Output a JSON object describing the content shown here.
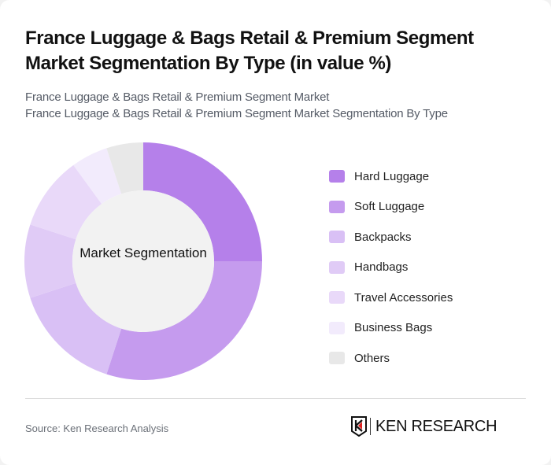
{
  "header": {
    "title": "France Luggage & Bags Retail & Premium Segment Market Segmentation By Type (in value %)",
    "subtitle_line1": "France Luggage & Bags Retail & Premium Segment Market",
    "subtitle_line2": "France Luggage & Bags Retail & Premium Segment Market Segmentation By Type"
  },
  "chart_data": {
    "type": "pie",
    "subtype": "donut",
    "title": "France Luggage & Bags Retail & Premium Segment Market Segmentation By Type (in value %)",
    "center_label": "Market Segmentation",
    "categories": [
      "Hard Luggage",
      "Soft Luggage",
      "Backpacks",
      "Handbags",
      "Travel Accessories",
      "Business Bags",
      "Others"
    ],
    "values": [
      25,
      30,
      15,
      10,
      10,
      5,
      5
    ],
    "colors": [
      "#b580ea",
      "#c59bee",
      "#d9c0f5",
      "#e0cbf6",
      "#e9d9f9",
      "#f2ebfc",
      "#e8e8e8"
    ],
    "legend_position": "right"
  },
  "legend": {
    "items": [
      {
        "label": "Hard Luggage",
        "color": "#b580ea"
      },
      {
        "label": "Soft Luggage",
        "color": "#c59bee"
      },
      {
        "label": "Backpacks",
        "color": "#d9c0f5"
      },
      {
        "label": "Handbags",
        "color": "#e0cbf6"
      },
      {
        "label": "Travel Accessories",
        "color": "#e9d9f9"
      },
      {
        "label": "Business Bags",
        "color": "#f2ebfc"
      },
      {
        "label": "Others",
        "color": "#e8e8e8"
      }
    ]
  },
  "footer": {
    "source": "Source: Ken Research Analysis",
    "logo_text": "KEN RESEARCH"
  }
}
